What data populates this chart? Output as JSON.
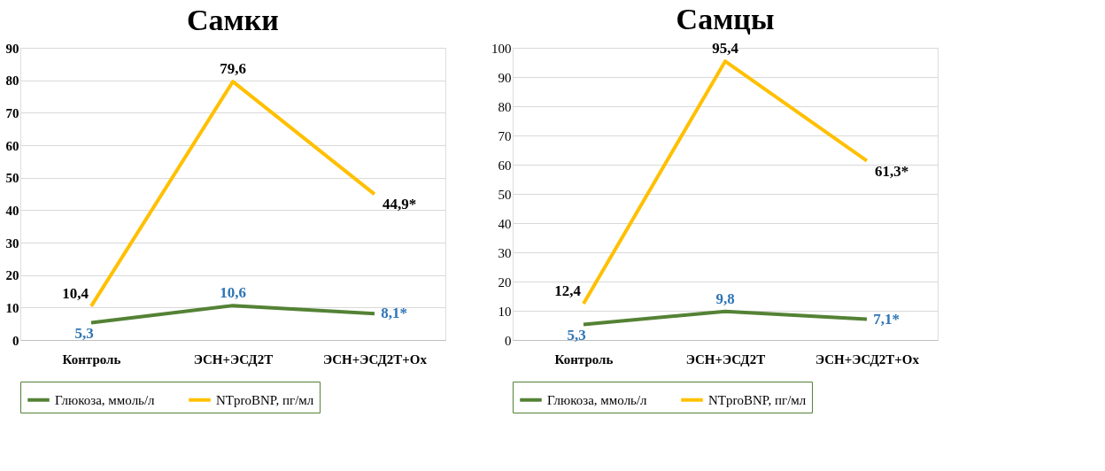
{
  "chart_data": [
    {
      "type": "line",
      "title": "Самки",
      "categories": [
        "Контроль",
        "ЭСН+ЭСД2Т",
        "ЭСН+ЭСД2Т+Ox"
      ],
      "ylim": [
        0,
        90
      ],
      "yticks": [
        0,
        10,
        20,
        30,
        40,
        50,
        60,
        70,
        80,
        90
      ],
      "grid": "y",
      "legend": "bottom",
      "marker": "none",
      "line_style": "solid",
      "series": [
        {
          "name": "Глюкоза, ммоль/л",
          "color": "#548235",
          "values": [
            5.3,
            10.6,
            8.1
          ],
          "value_labels": [
            "5,3",
            "10,6",
            "8,1*"
          ]
        },
        {
          "name": "NTproBNP, пг/мл",
          "color": "#ffc000",
          "values": [
            10.4,
            79.6,
            44.9
          ],
          "value_labels": [
            "10,4",
            "79,6",
            "44,9*"
          ]
        }
      ]
    },
    {
      "type": "line",
      "title": "Самцы",
      "categories": [
        "Контроль",
        "ЭСН+ЭСД2Т",
        "ЭСН+ЭСД2Т+Ox"
      ],
      "ylim": [
        0,
        100
      ],
      "yticks": [
        0,
        10,
        20,
        30,
        40,
        50,
        60,
        70,
        80,
        90,
        100
      ],
      "grid": "y",
      "legend": "bottom",
      "marker": "none",
      "line_style": "solid",
      "series": [
        {
          "name": "Глюкоза, ммоль/л",
          "color": "#548235",
          "values": [
            5.3,
            9.8,
            7.1
          ],
          "value_labels": [
            "5,3",
            "9,8",
            "7,1*"
          ]
        },
        {
          "name": "NTproBNP, пг/мл",
          "color": "#ffc000",
          "values": [
            12.4,
            95.4,
            61.3
          ],
          "value_labels": [
            "12,4",
            "95,4",
            "61,3*"
          ]
        }
      ]
    }
  ]
}
